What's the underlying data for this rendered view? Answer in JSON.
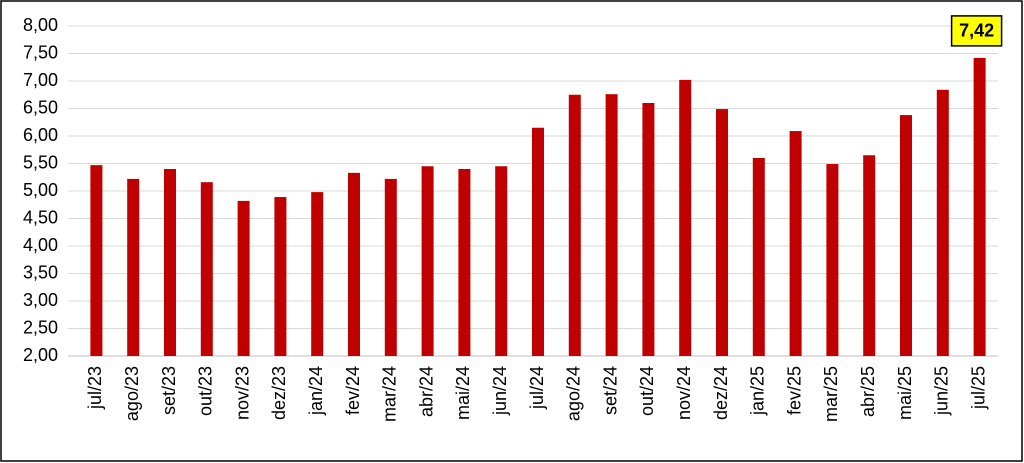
{
  "chart_data": {
    "type": "bar",
    "categories": [
      "jul/23",
      "ago/23",
      "set/23",
      "out/23",
      "nov/23",
      "dez/23",
      "jan/24",
      "fev/24",
      "mar/24",
      "abr/24",
      "mai/24",
      "jun/24",
      "jul/24",
      "ago/24",
      "set/24",
      "out/24",
      "nov/24",
      "dez/24",
      "jan/25",
      "fev/25",
      "mar/25",
      "abr/25",
      "mai/25",
      "jun/25",
      "jul/25"
    ],
    "values": [
      5.47,
      5.22,
      5.4,
      5.16,
      4.82,
      4.89,
      4.98,
      5.33,
      5.22,
      5.45,
      5.4,
      5.45,
      6.15,
      6.75,
      6.76,
      6.6,
      7.02,
      6.49,
      5.6,
      6.09,
      5.49,
      5.65,
      6.38,
      6.84,
      7.42
    ],
    "value_labels": [
      null,
      null,
      null,
      null,
      null,
      null,
      null,
      null,
      null,
      null,
      null,
      null,
      null,
      null,
      null,
      null,
      null,
      null,
      null,
      null,
      null,
      null,
      null,
      null,
      "7,42"
    ],
    "color": "#c00000",
    "ylim": [
      2,
      8
    ],
    "yticks": [
      {
        "value": 2,
        "label": "2,00"
      },
      {
        "value": 2.5,
        "label": "2,50"
      },
      {
        "value": 3,
        "label": "3,00"
      },
      {
        "value": 3.5,
        "label": "3,50"
      },
      {
        "value": 4,
        "label": "4,00"
      },
      {
        "value": 4.5,
        "label": "4,50"
      },
      {
        "value": 5,
        "label": "5,00"
      },
      {
        "value": 5.5,
        "label": "5,50"
      },
      {
        "value": 6,
        "label": "6,00"
      },
      {
        "value": 6.5,
        "label": "6,50"
      },
      {
        "value": 7,
        "label": "7,00"
      },
      {
        "value": 7.5,
        "label": "7,50"
      },
      {
        "value": 8,
        "label": "8,00"
      }
    ],
    "grid": true
  }
}
